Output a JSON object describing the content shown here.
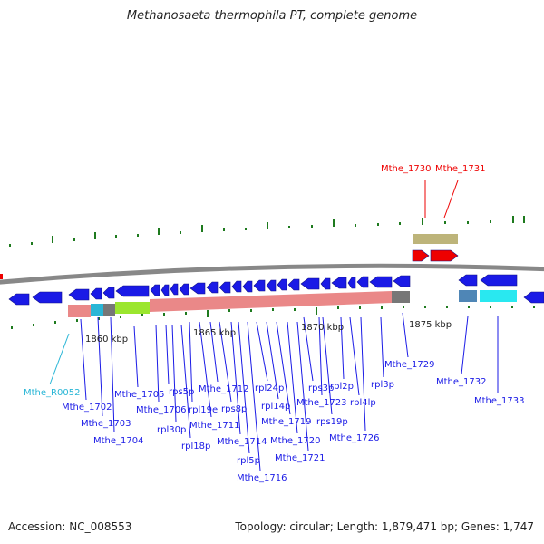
{
  "title": "Methanosaeta thermophila PT, complete genome",
  "footer": {
    "accession": "Accession: NC_008553",
    "summary": "Topology: circular; Length: 1,879,471 bp; Genes: 1,747"
  },
  "colors": {
    "backbone": "#888888",
    "forward_gene": "#ee0000",
    "reverse_gene": "#1a1ae6",
    "rrna_label": "#29b6d6",
    "tick": "#1e7a1e",
    "track_khaki": "#bdb47a",
    "track_salmon": "#ea8888",
    "track_grey": "#777777",
    "track_green": "#9be62e",
    "track_cyan": "#29e8f0",
    "track_steel": "#4f86b6"
  },
  "scale": {
    "labels": [
      "1860 kbp",
      "1865 kbp",
      "1870 kbp",
      "1875 kbp"
    ]
  },
  "gene_labels": [
    {
      "text": "Mthe_1730",
      "color": "red"
    },
    {
      "text": "Mthe_1731",
      "color": "red"
    },
    {
      "text": "Mthe_R0052",
      "color": "cyan"
    },
    {
      "text": "Mthe_1702",
      "color": "blue"
    },
    {
      "text": "Mthe_1703",
      "color": "blue"
    },
    {
      "text": "Mthe_1704",
      "color": "blue"
    },
    {
      "text": "Mthe_1705",
      "color": "blue"
    },
    {
      "text": "Mthe_1706",
      "color": "blue"
    },
    {
      "text": "rps5p",
      "color": "blue"
    },
    {
      "text": "rpl30p",
      "color": "blue"
    },
    {
      "text": "rpl18p",
      "color": "blue"
    },
    {
      "text": "rpl19e",
      "color": "blue"
    },
    {
      "text": "Mthe_1711",
      "color": "blue"
    },
    {
      "text": "Mthe_1712",
      "color": "blue"
    },
    {
      "text": "rps8p",
      "color": "blue"
    },
    {
      "text": "Mthe_1714",
      "color": "blue"
    },
    {
      "text": "rpl5p",
      "color": "blue"
    },
    {
      "text": "Mthe_1716",
      "color": "blue"
    },
    {
      "text": "rpl24p",
      "color": "blue"
    },
    {
      "text": "rpl14p",
      "color": "blue"
    },
    {
      "text": "Mthe_1719",
      "color": "blue"
    },
    {
      "text": "Mthe_1720",
      "color": "blue"
    },
    {
      "text": "Mthe_1721",
      "color": "blue"
    },
    {
      "text": "rps3p",
      "color": "blue"
    },
    {
      "text": "Mthe_1723",
      "color": "blue"
    },
    {
      "text": "rps19p",
      "color": "blue"
    },
    {
      "text": "rpl2p",
      "color": "blue"
    },
    {
      "text": "rpl4lp",
      "color": "blue"
    },
    {
      "text": "Mthe_1726",
      "color": "blue"
    },
    {
      "text": "rpl3p",
      "color": "blue"
    },
    {
      "text": "Mthe_1729",
      "color": "blue"
    },
    {
      "text": "Mthe_1732",
      "color": "blue"
    },
    {
      "text": "Mthe_1733",
      "color": "blue"
    }
  ]
}
